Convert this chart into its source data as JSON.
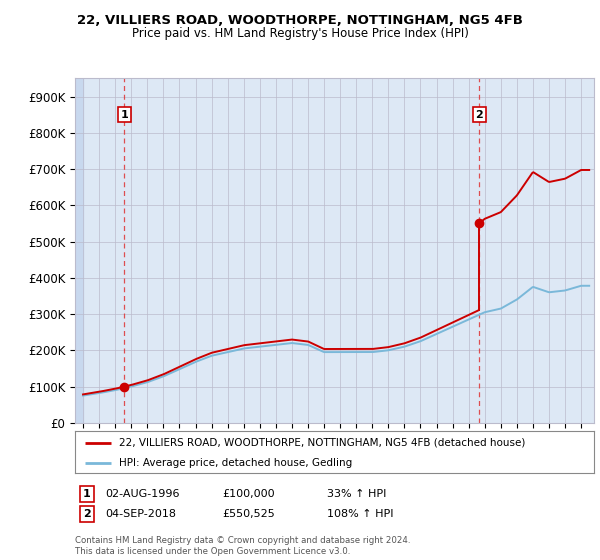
{
  "title_line1": "22, VILLIERS ROAD, WOODTHORPE, NOTTINGHAM, NG5 4FB",
  "title_line2": "Price paid vs. HM Land Registry's House Price Index (HPI)",
  "ylabel_ticks": [
    "£0",
    "£100K",
    "£200K",
    "£300K",
    "£400K",
    "£500K",
    "£600K",
    "£700K",
    "£800K",
    "£900K"
  ],
  "ytick_values": [
    0,
    100000,
    200000,
    300000,
    400000,
    500000,
    600000,
    700000,
    800000,
    900000
  ],
  "ylim": [
    0,
    950000
  ],
  "xlim_start": 1993.5,
  "xlim_end": 2025.8,
  "hpi_color": "#7ab8d9",
  "price_color": "#cc0000",
  "marker_color": "#cc0000",
  "transaction1_x": 1996.58,
  "transaction1_y": 100000,
  "transaction2_x": 2018.67,
  "transaction2_y": 550525,
  "legend_price_label": "22, VILLIERS ROAD, WOODTHORPE, NOTTINGHAM, NG5 4FB (detached house)",
  "legend_hpi_label": "HPI: Average price, detached house, Gedling",
  "copyright_text": "Contains HM Land Registry data © Crown copyright and database right 2024.\nThis data is licensed under the Open Government Licence v3.0.",
  "background_color": "#ffffff",
  "plot_bg_color": "#dde8f5",
  "hatch_bg_color": "#c8d8ee",
  "grid_color": "#bbbbcc"
}
